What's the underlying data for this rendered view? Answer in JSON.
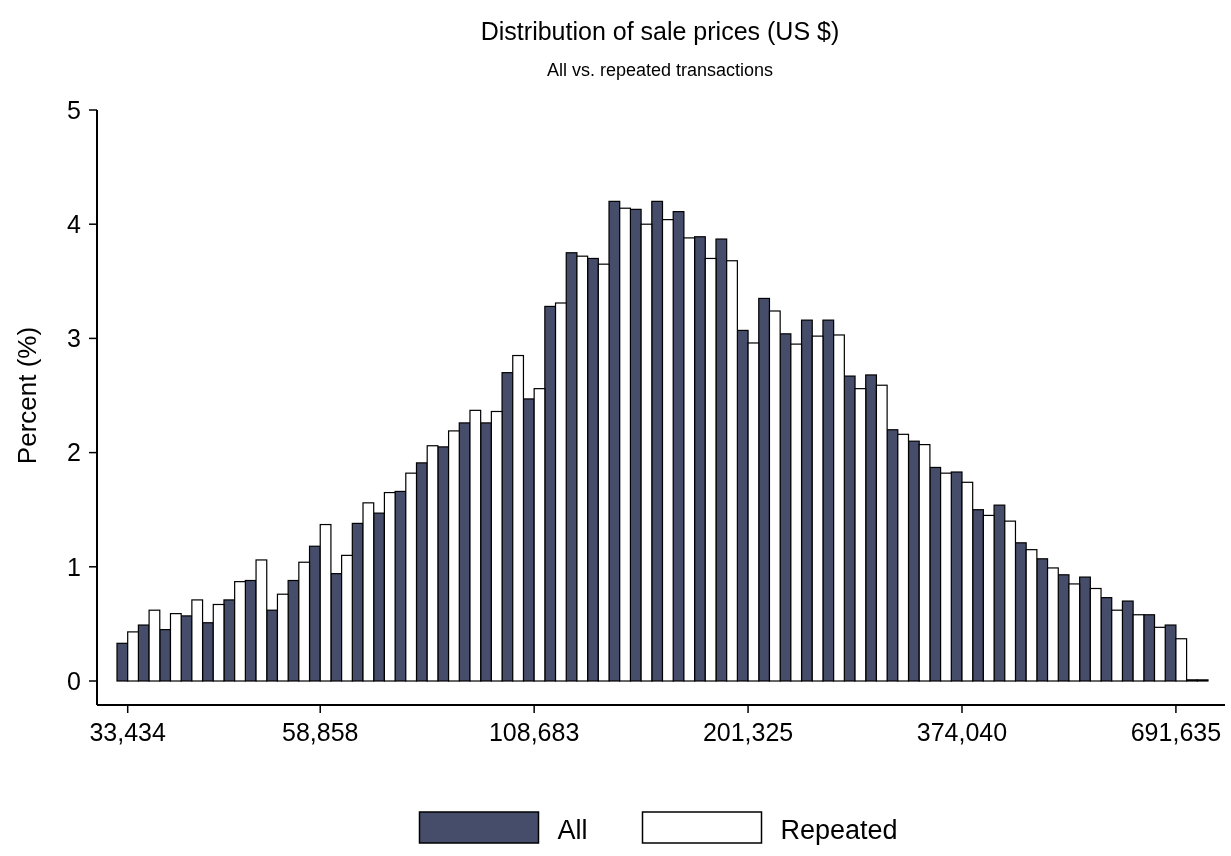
{
  "chart_data": {
    "type": "bar",
    "title": "Distribution of sale prices (US $)",
    "subtitle": "All vs. repeated transactions",
    "ylabel": "Percent (%)",
    "categories": [
      "33,434",
      null,
      null,
      null,
      null,
      null,
      null,
      null,
      null,
      "58,858",
      null,
      null,
      null,
      null,
      null,
      null,
      null,
      null,
      null,
      "108,683",
      null,
      null,
      null,
      null,
      null,
      null,
      null,
      null,
      null,
      "201,325",
      null,
      null,
      null,
      null,
      null,
      null,
      null,
      null,
      null,
      "374,040",
      null,
      null,
      null,
      null,
      null,
      null,
      null,
      null,
      null,
      "691,635",
      null
    ],
    "series": [
      {
        "name": "All",
        "color": "#464d6b",
        "values": [
          0.33,
          0.49,
          0.45,
          0.57,
          0.51,
          0.71,
          0.88,
          0.62,
          0.88,
          1.18,
          0.94,
          1.38,
          1.47,
          1.66,
          1.91,
          2.05,
          2.26,
          2.26,
          2.7,
          2.47,
          3.28,
          3.75,
          3.7,
          4.2,
          4.13,
          4.2,
          4.11,
          3.89,
          3.87,
          3.07,
          3.35,
          3.04,
          3.16,
          3.16,
          2.67,
          2.68,
          2.2,
          2.1,
          1.87,
          1.83,
          1.5,
          1.54,
          1.21,
          1.07,
          0.93,
          0.91,
          0.73,
          0.7,
          0.58,
          0.49,
          0.01
        ]
      },
      {
        "name": "Repeated",
        "color": "#ffffff",
        "values": [
          0.43,
          0.62,
          0.59,
          0.71,
          0.67,
          0.87,
          1.06,
          0.76,
          1.04,
          1.37,
          1.1,
          1.56,
          1.65,
          1.82,
          2.06,
          2.19,
          2.37,
          2.36,
          2.85,
          2.56,
          3.31,
          3.72,
          3.65,
          4.14,
          4.0,
          4.04,
          3.88,
          3.7,
          3.68,
          2.96,
          3.24,
          2.95,
          3.02,
          3.03,
          2.56,
          2.59,
          2.16,
          2.07,
          1.82,
          1.74,
          1.45,
          1.4,
          1.15,
          0.99,
          0.85,
          0.81,
          0.62,
          0.58,
          0.47,
          0.37,
          0.01
        ]
      }
    ],
    "ylim": [
      0,
      5
    ],
    "yticks": [
      0,
      1,
      2,
      3,
      4,
      5
    ],
    "legend": "bottom"
  }
}
